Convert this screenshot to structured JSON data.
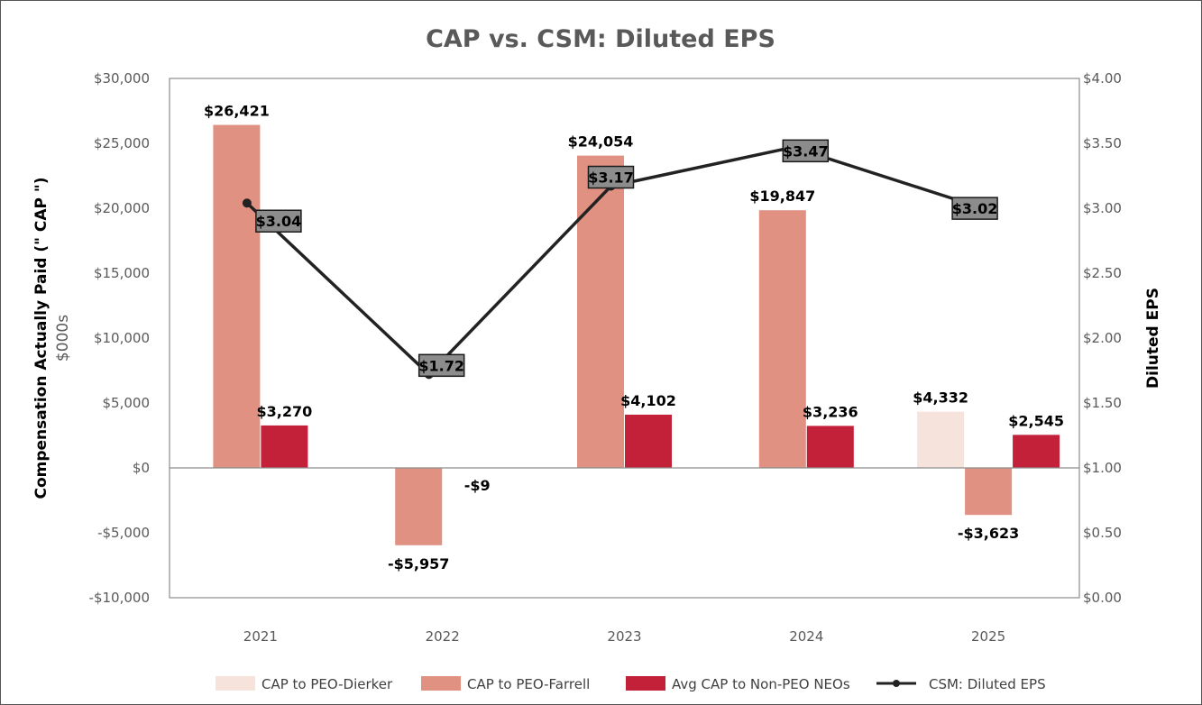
{
  "chart_data": {
    "type": "bar",
    "title": "CAP vs. CSM: Diluted EPS",
    "categories": [
      "2021",
      "2022",
      "2023",
      "2024",
      "2025"
    ],
    "ylabel": "Compensation Actually Paid (\" CAP \")",
    "ylabel_sub": "$000s",
    "y2label": "Diluted EPS",
    "ylim": [
      -10000,
      30000
    ],
    "y2lim": [
      0,
      4
    ],
    "y_ticks": [
      30000,
      25000,
      20000,
      15000,
      10000,
      5000,
      0,
      -5000,
      -10000
    ],
    "y_tick_labels": [
      "$30,000",
      "$25,000",
      "$20,000",
      "$15,000",
      "$10,000",
      "$5,000",
      "$0",
      "-$5,000",
      "-$10,000"
    ],
    "y2_ticks": [
      4,
      3.5,
      3,
      2.5,
      2,
      1.5,
      1,
      0.5,
      0
    ],
    "y2_tick_labels": [
      "$4.00",
      "$3.50",
      "$3.00",
      "$2.50",
      "$2.00",
      "$1.50",
      "$1.00",
      "$0.50",
      "$0.00"
    ],
    "series": [
      {
        "name": "CAP to PEO-Dierker",
        "kind": "bar",
        "color": "#f6e3dc",
        "values": [
          null,
          null,
          null,
          null,
          4332
        ],
        "labels": [
          "",
          "",
          "",
          "",
          "$4,332"
        ]
      },
      {
        "name": "CAP to PEO-Farrell",
        "kind": "bar",
        "color": "#e09182",
        "values": [
          26421,
          -5957,
          24054,
          19847,
          -3623
        ],
        "labels": [
          "$26,421",
          "-$5,957",
          "$24,054",
          "$19,847",
          "-$3,623"
        ]
      },
      {
        "name": "Avg CAP to Non-PEO NEOs",
        "kind": "bar",
        "color": "#c3213a",
        "values": [
          3270,
          -9,
          4102,
          3236,
          2545
        ],
        "labels": [
          "$3,270",
          "-$9",
          "$4,102",
          "$3,236",
          "$2,545"
        ]
      },
      {
        "name": "CSM: Diluted EPS",
        "kind": "line",
        "axis": "secondary",
        "color": "#222222",
        "values": [
          3.04,
          1.72,
          3.17,
          3.47,
          3.02
        ],
        "labels": [
          "$3.04",
          "$1.72",
          "$3.17",
          "$3.47",
          "$3.02"
        ]
      }
    ],
    "legend_position": "bottom"
  }
}
